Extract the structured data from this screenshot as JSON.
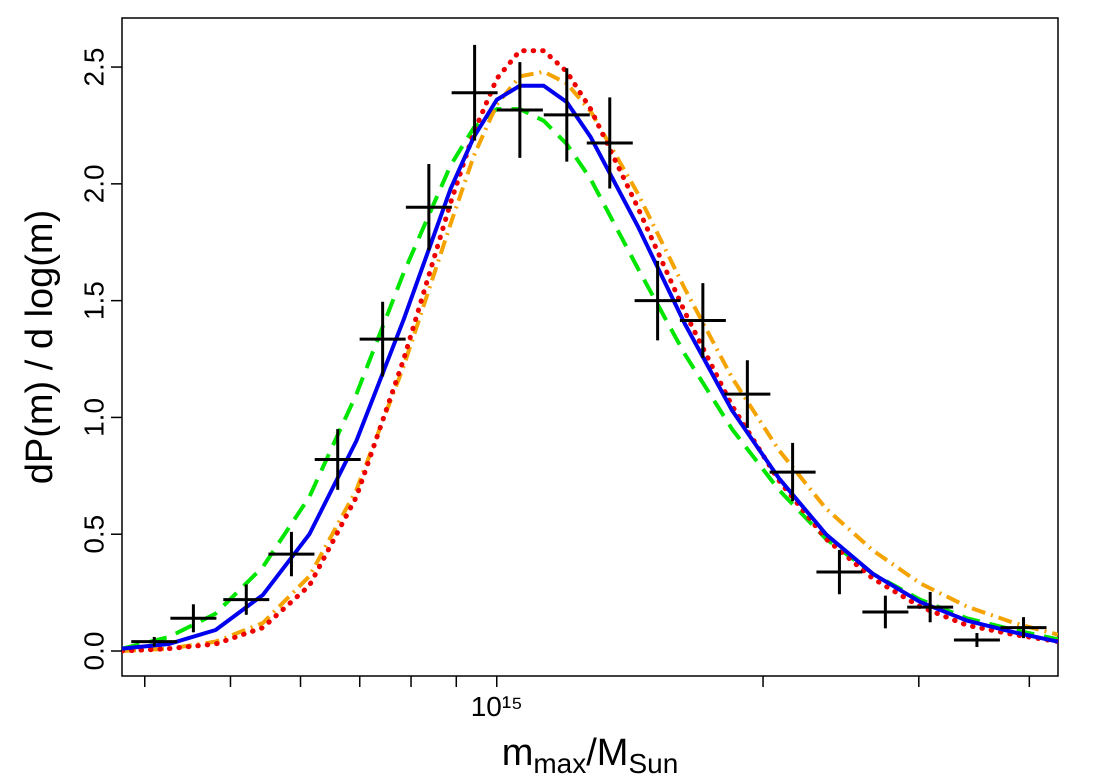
{
  "chart_data": {
    "type": "line",
    "xlog": true,
    "xlim": [
      377000000000000.0,
      4310000000000000.0
    ],
    "ylim": [
      -0.107,
      2.71
    ],
    "xticks": [
      {
        "value": 400000000000000.0,
        "label": null
      },
      {
        "value": 500000000000000.0,
        "label": null
      },
      {
        "value": 600000000000000.0,
        "label": null
      },
      {
        "value": 700000000000000.0,
        "label": null
      },
      {
        "value": 800000000000000.0,
        "label": null
      },
      {
        "value": 900000000000000.0,
        "label": null
      },
      {
        "value": 1000000000000000.0,
        "label": "10¹⁵"
      },
      {
        "value": 2000000000000000.0,
        "label": null
      },
      {
        "value": 3000000000000000.0,
        "label": null
      },
      {
        "value": 4000000000000000.0,
        "label": null
      }
    ],
    "yticks": [
      {
        "value": 0,
        "label": "0.0"
      },
      0.5,
      {
        "value": 1,
        "label": "1.0"
      },
      1.5,
      {
        "value": 2,
        "label": "2.0"
      },
      2.5
    ],
    "ylabel": "dP(m) / d log(m)",
    "xlabel": [
      {
        "text": "m"
      },
      {
        "text": "max",
        "sub": true
      },
      {
        "text": "/M"
      },
      {
        "text": "Sun",
        "sub": true
      }
    ],
    "x": [
      377000000000000.0,
      426000000000000.0,
      481000000000000.0,
      544000000000000.0,
      614000000000000.0,
      694000000000000.0,
      785000000000000.0,
      887000000000000.0,
      942000000000000.0,
      1000000000000000.0,
      1062000000000000.0,
      1130000000000000.0,
      1200000000000000.0,
      1277000000000000.0,
      1443000000000000.0,
      1632000000000000.0,
      1845000000000000.0,
      2084000000000000.0,
      2356000000000000.0,
      2663000000000000.0,
      3010000000000000.0,
      3402000000000000.0,
      3845000000000000.0,
      4310000000000000.0
    ],
    "series": [
      {
        "color": "#00e600",
        "style": "dashed",
        "values": [
          0.01,
          0.06,
          0.16,
          0.36,
          0.66,
          1.1,
          1.62,
          2.08,
          2.24,
          2.32,
          2.32,
          2.27,
          2.17,
          2.02,
          1.64,
          1.27,
          0.95,
          0.69,
          0.48,
          0.33,
          0.22,
          0.14,
          0.09,
          0.05
        ]
      },
      {
        "color": "#f5a300",
        "style": "dashdot",
        "values": [
          0.0,
          0.01,
          0.04,
          0.12,
          0.32,
          0.69,
          1.22,
          1.83,
          2.12,
          2.34,
          2.46,
          2.48,
          2.43,
          2.31,
          1.96,
          1.55,
          1.17,
          0.86,
          0.61,
          0.43,
          0.29,
          0.19,
          0.12,
          0.07
        ]
      },
      {
        "color": "#ee0000",
        "style": "dotted",
        "values": [
          0.0,
          0.01,
          0.03,
          0.1,
          0.28,
          0.66,
          1.25,
          1.92,
          2.22,
          2.45,
          2.57,
          2.57,
          2.48,
          2.32,
          1.9,
          1.45,
          1.05,
          0.73,
          0.48,
          0.31,
          0.19,
          0.11,
          0.07,
          0.04
        ]
      },
      {
        "color": "#0000ee",
        "style": "solid",
        "values": [
          0.01,
          0.03,
          0.09,
          0.24,
          0.5,
          0.9,
          1.42,
          1.98,
          2.2,
          2.36,
          2.42,
          2.42,
          2.35,
          2.2,
          1.82,
          1.4,
          1.03,
          0.74,
          0.5,
          0.33,
          0.21,
          0.13,
          0.08,
          0.04
        ]
      }
    ],
    "points": {
      "color": "#000000",
      "x": [
        410000000000000.0,
        454000000000000.0,
        521000000000000.0,
        586000000000000.0,
        661000000000000.0,
        743000000000000.0,
        838000000000000.0,
        944000000000000.0,
        1062000000000000.0,
        1200000000000000.0,
        1342000000000000.0,
        1520000000000000.0,
        1710000000000000.0,
        1920000000000000.0,
        2160000000000000.0,
        2440000000000000.0,
        2750000000000000.0,
        3090000000000000.0,
        3490000000000000.0,
        3940000000000000.0
      ],
      "values": [
        0.04,
        0.14,
        0.22,
        0.415,
        0.82,
        1.335,
        1.9,
        2.39,
        2.316,
        2.295,
        2.175,
        1.5,
        1.415,
        1.1,
        0.766,
        0.338,
        0.167,
        0.188,
        0.047,
        0.1
      ],
      "yerr": [
        0.02,
        0.06,
        0.065,
        0.095,
        0.13,
        0.16,
        0.185,
        0.205,
        0.205,
        0.2,
        0.195,
        0.17,
        0.16,
        0.145,
        0.125,
        0.095,
        0.07,
        0.065,
        0.03,
        0.045
      ]
    }
  }
}
